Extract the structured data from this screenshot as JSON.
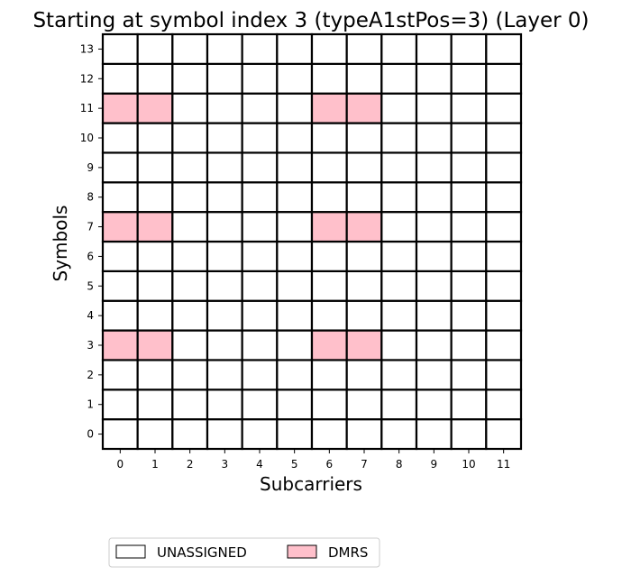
{
  "chart_data": {
    "type": "heatmap",
    "title": "Starting at symbol index 3 (typeA1stPos=3) (Layer 0)",
    "xlabel": "Subcarriers",
    "ylabel": "Symbols",
    "x_ticks": [
      "0",
      "1",
      "2",
      "3",
      "4",
      "5",
      "6",
      "7",
      "8",
      "9",
      "10",
      "11"
    ],
    "y_ticks": [
      "0",
      "1",
      "2",
      "3",
      "4",
      "5",
      "6",
      "7",
      "8",
      "9",
      "10",
      "11",
      "12",
      "13"
    ],
    "grid": true,
    "legend_placement": "bottom-left",
    "categories": [
      {
        "name": "UNASSIGNED",
        "color": "#ffffff"
      },
      {
        "name": "DMRS",
        "color": "#ffc0cb"
      }
    ],
    "default_category": "UNASSIGNED",
    "assigned_cells": [
      {
        "subcarrier": 0,
        "symbol": 3,
        "category": "DMRS"
      },
      {
        "subcarrier": 1,
        "symbol": 3,
        "category": "DMRS"
      },
      {
        "subcarrier": 6,
        "symbol": 3,
        "category": "DMRS"
      },
      {
        "subcarrier": 7,
        "symbol": 3,
        "category": "DMRS"
      },
      {
        "subcarrier": 0,
        "symbol": 7,
        "category": "DMRS"
      },
      {
        "subcarrier": 1,
        "symbol": 7,
        "category": "DMRS"
      },
      {
        "subcarrier": 6,
        "symbol": 7,
        "category": "DMRS"
      },
      {
        "subcarrier": 7,
        "symbol": 7,
        "category": "DMRS"
      },
      {
        "subcarrier": 0,
        "symbol": 11,
        "category": "DMRS"
      },
      {
        "subcarrier": 1,
        "symbol": 11,
        "category": "DMRS"
      },
      {
        "subcarrier": 6,
        "symbol": 11,
        "category": "DMRS"
      },
      {
        "subcarrier": 7,
        "symbol": 11,
        "category": "DMRS"
      }
    ]
  }
}
